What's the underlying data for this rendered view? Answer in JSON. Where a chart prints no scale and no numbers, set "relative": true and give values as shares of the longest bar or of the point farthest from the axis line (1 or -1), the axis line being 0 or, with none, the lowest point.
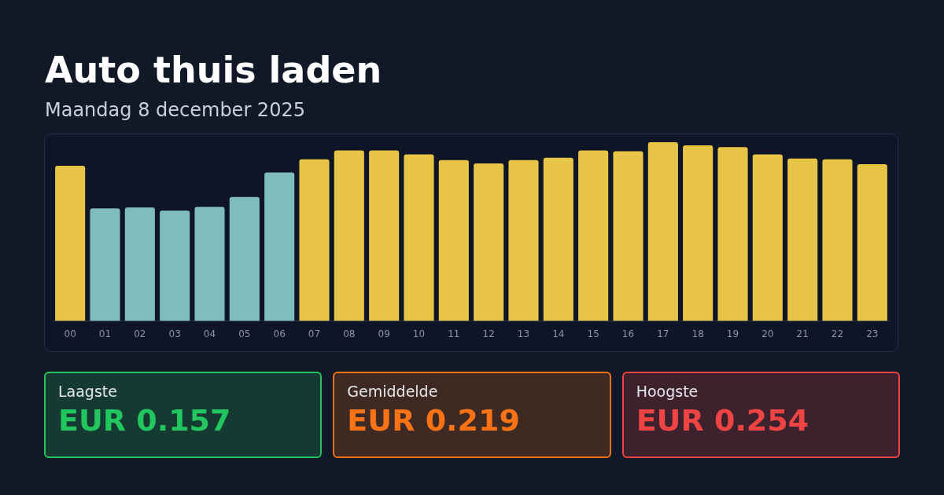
{
  "chart_data": [
    {
      "type": "bar",
      "title": "Auto thuis laden",
      "subtitle": "Maandag 8 december 2025",
      "relative": true,
      "categories": [
        "00",
        "01",
        "02",
        "03",
        "04",
        "05",
        "06",
        "07",
        "08",
        "09",
        "10",
        "11",
        "12",
        "13",
        "14",
        "15",
        "16",
        "17",
        "18",
        "19",
        "20",
        "21",
        "22",
        "23"
      ],
      "values": [
        0.868,
        0.63,
        0.635,
        0.618,
        0.639,
        0.694,
        0.831,
        0.904,
        0.954,
        0.954,
        0.932,
        0.9,
        0.881,
        0.9,
        0.913,
        0.954,
        0.95,
        1,
        0.982,
        0.973,
        0.932,
        0.909,
        0.904,
        0.877
      ],
      "colors": [
        "#e8c547",
        "#7fbcbc",
        "#7fbcbc",
        "#7fbcbc",
        "#7fbcbc",
        "#7fbcbc",
        "#7fbcbc",
        "#e8c547",
        "#e8c547",
        "#e8c547",
        "#e8c547",
        "#e8c547",
        "#e8c547",
        "#e8c547",
        "#e8c547",
        "#e8c547",
        "#e8c547",
        "#e8c547",
        "#e8c547",
        "#e8c547",
        "#e8c547",
        "#e8c547",
        "#e8c547",
        "#e8c547"
      ],
      "legend": false
    },
    {
      "type": "other",
      "categories": [
        "Laagste",
        "Gemiddelde",
        "Hoogste"
      ],
      "value_labels": [
        "EUR 0.157",
        "EUR 0.219",
        "EUR 0.254"
      ],
      "colors": [
        "#22c55e",
        "#f97316",
        "#ef4444"
      ]
    }
  ]
}
